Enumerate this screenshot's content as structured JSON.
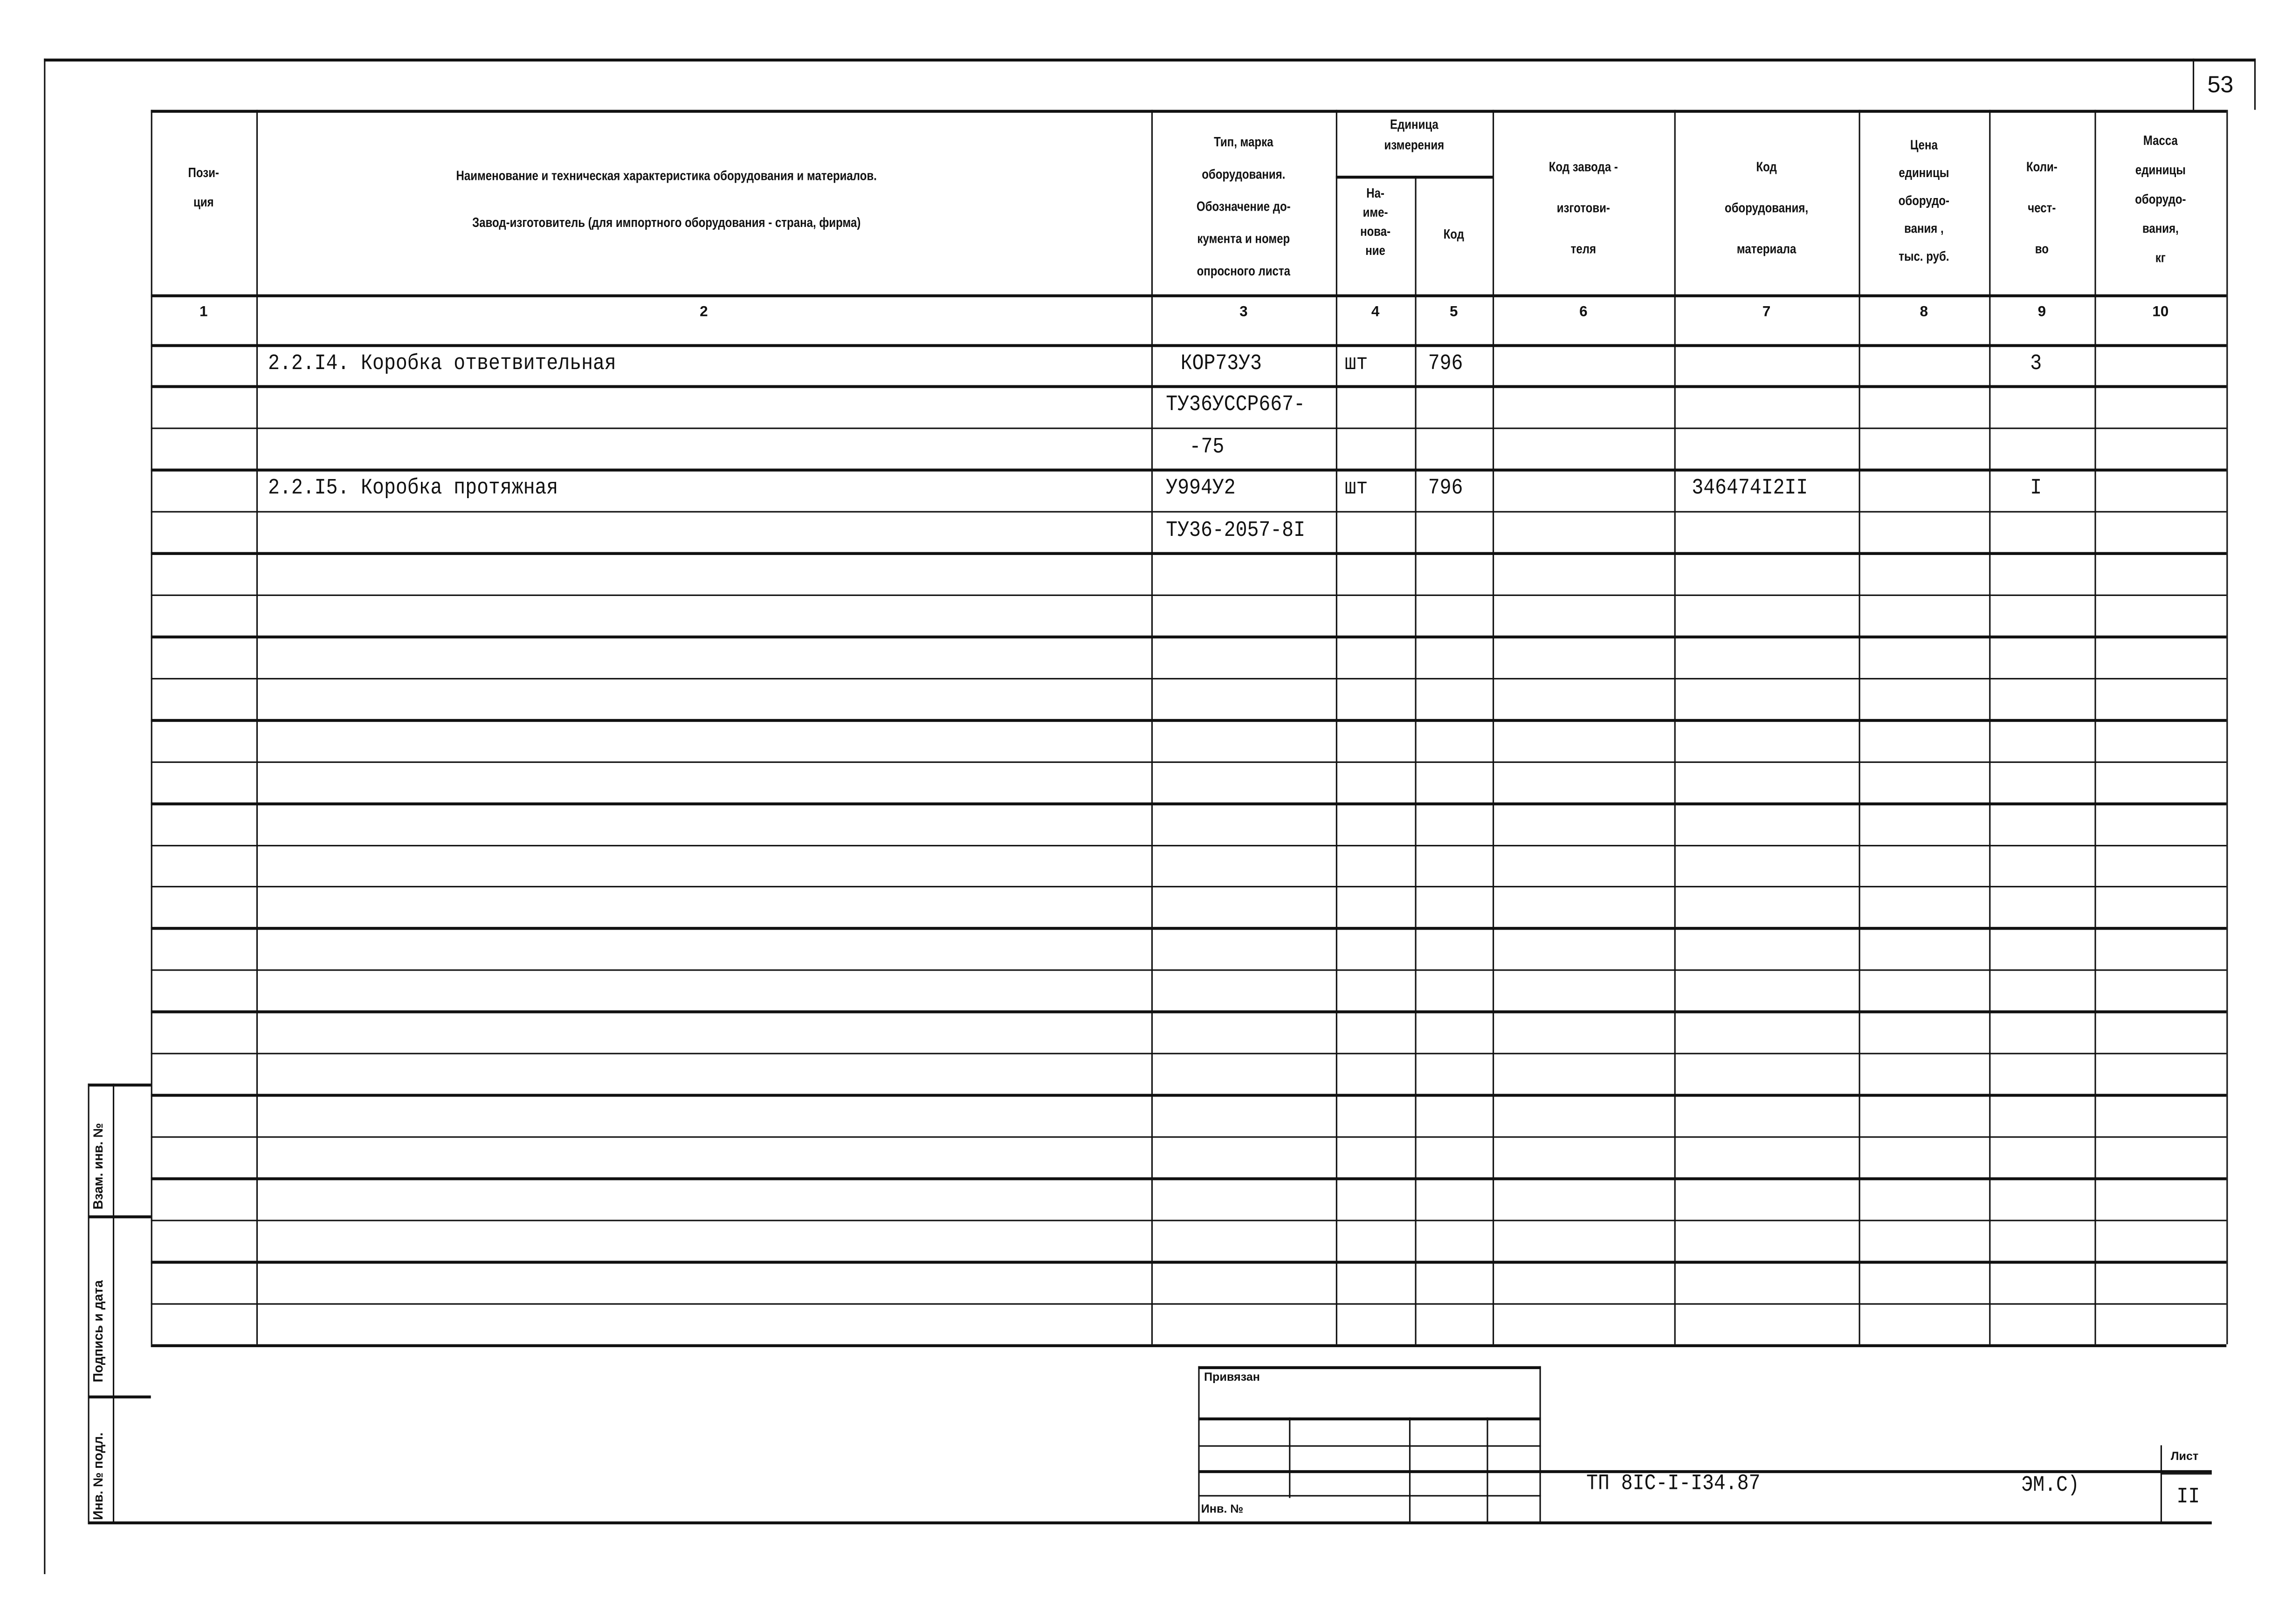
{
  "page_number": "53",
  "headers": {
    "position": [
      "Пози-",
      "ция"
    ],
    "name": [
      "Наименование и техническая характеристика  оборудования и материалов.",
      "Завод-изготовитель  (для импортного оборудования -  страна, фирма)"
    ],
    "type": [
      "Тип,      марка",
      "оборудования.",
      "Обозначение  до-",
      "кумента  и  номер",
      "опросного листа"
    ],
    "unit": [
      "Единица",
      "измерения"
    ],
    "unit_name": [
      "На-",
      "име-",
      "нова-",
      "ние"
    ],
    "unit_code": "Код",
    "factory_code": [
      "Код  завода -",
      "изготови-",
      "теля"
    ],
    "equipment_code": [
      "Код",
      "оборудования,",
      "материала"
    ],
    "price": [
      "Цена",
      "единицы",
      "оборудо-",
      "вания ,",
      "тыс. руб."
    ],
    "quantity": [
      "Коли-",
      "чест-",
      "во"
    ],
    "mass": [
      "Масса",
      "единицы",
      "оборудо-",
      "вания,",
      "кг"
    ]
  },
  "column_numbers": [
    "1",
    "2",
    "3",
    "4",
    "5",
    "6",
    "7",
    "8",
    "9",
    "10"
  ],
  "rows": [
    {
      "name": "2.2.I4. Коробка ответвительная",
      "type": "КОР73У3",
      "unit": "шт",
      "code": "796",
      "equip_code": "",
      "qty": "3"
    },
    {
      "name": "",
      "type": "ТУ36УССР667-",
      "unit": "",
      "code": "",
      "equip_code": "",
      "qty": ""
    },
    {
      "name": "",
      "type": "-75",
      "unit": "",
      "code": "",
      "equip_code": "",
      "qty": ""
    },
    {
      "name": "2.2.I5. Коробка протяжная",
      "type": "У994У2",
      "unit": "шт",
      "code": "796",
      "equip_code": "346474I2II",
      "qty": "I"
    },
    {
      "name": "",
      "type": "ТУ36-2057-8I",
      "unit": "",
      "code": "",
      "equip_code": "",
      "qty": ""
    }
  ],
  "empty_row_count": 24,
  "side_labels": {
    "replace": "Взам. инв. №",
    "signature": "Подпись и дата",
    "original": "Инв. № подл."
  },
  "stamp": {
    "bound": "Привязан",
    "inv": "Инв. №"
  },
  "title_block": {
    "designation": "ТП   8IС-I-I34.87",
    "section": "ЭМ.С)",
    "sheet_label": "Лист",
    "sheet_number": "II"
  }
}
